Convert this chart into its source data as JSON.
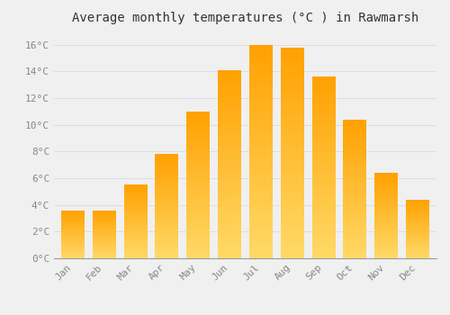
{
  "title": "Average monthly temperatures (°C ) in Rawmarsh",
  "months": [
    "Jan",
    "Feb",
    "Mar",
    "Apr",
    "May",
    "Jun",
    "Jul",
    "Aug",
    "Sep",
    "Oct",
    "Nov",
    "Dec"
  ],
  "temperatures": [
    3.6,
    3.6,
    5.5,
    7.8,
    11.0,
    14.1,
    16.0,
    15.8,
    13.6,
    10.4,
    6.4,
    4.4
  ],
  "bar_color_bottom": "#FFD966",
  "bar_color_top": "#FFA500",
  "background_color": "#F0F0F0",
  "grid_color": "#DDDDDD",
  "ylim": [
    0,
    17
  ],
  "yticks": [
    0,
    2,
    4,
    6,
    8,
    10,
    12,
    14,
    16
  ],
  "ytick_labels": [
    "0°C",
    "2°C",
    "4°C",
    "6°C",
    "8°C",
    "10°C",
    "12°C",
    "14°C",
    "16°C"
  ],
  "tick_label_color": "#888888",
  "title_fontsize": 10,
  "tick_fontsize": 8,
  "font_family": "monospace",
  "bar_width": 0.75
}
